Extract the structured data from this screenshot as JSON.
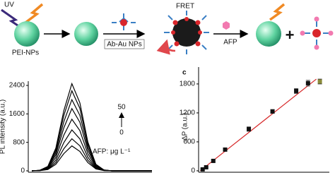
{
  "schematic": {
    "uv": "UV",
    "pei": "PEI-NPs",
    "ab": "Ab-Au NPs",
    "fret": "FRET",
    "afp": "AFP"
  },
  "chart_data": [
    {
      "type": "line",
      "y_label": "PL intensity (a.u.)",
      "annotations": [
        "50",
        "0",
        "AFP: μg L⁻¹"
      ],
      "categories": [
        null,
        null,
        null,
        null,
        null,
        null,
        null,
        null,
        null,
        null,
        null,
        null,
        null,
        null,
        null,
        null
      ],
      "series": [
        {
          "color": "#000000",
          "values": [
            0,
            15,
            123,
            637,
            1691,
            2450,
            1911,
            809,
            184,
            25,
            0,
            0,
            0,
            0,
            0,
            0
          ]
        },
        {
          "color": "#000000",
          "values": [
            0,
            14,
            113,
            585,
            1553,
            2250,
            1755,
            743,
            169,
            23,
            0,
            0,
            0,
            0,
            0,
            0
          ]
        },
        {
          "color": "#000000",
          "values": [
            0,
            12,
            100,
            520,
            1380,
            2000,
            1560,
            660,
            150,
            20,
            0,
            0,
            0,
            0,
            0,
            0
          ]
        },
        {
          "color": "#000000",
          "values": [
            0,
            11,
            88,
            455,
            1208,
            1750,
            1365,
            578,
            131,
            18,
            0,
            0,
            0,
            0,
            0,
            0
          ]
        },
        {
          "color": "#000000",
          "values": [
            0,
            9,
            73,
            377,
            1001,
            1450,
            1131,
            479,
            109,
            15,
            0,
            0,
            0,
            0,
            0,
            0
          ]
        },
        {
          "color": "#000000",
          "values": [
            0,
            7,
            58,
            299,
            794,
            1150,
            897,
            380,
            86,
            12,
            0,
            0,
            0,
            0,
            0,
            0
          ]
        },
        {
          "color": "#000000",
          "values": [
            0,
            5,
            45,
            234,
            621,
            900,
            702,
            297,
            68,
            9,
            0,
            0,
            0,
            0,
            0,
            0
          ]
        },
        {
          "color": "#000000",
          "values": [
            0,
            4,
            35,
            182,
            483,
            700,
            546,
            231,
            53,
            7,
            0,
            0,
            0,
            0,
            0,
            0
          ]
        }
      ],
      "ylim": [
        -40,
        2520
      ],
      "yticks": [
        0,
        800,
        1600,
        2400
      ]
    },
    {
      "type": "scatter",
      "panel_label": "c",
      "y_label": "ΔP (a.u.)",
      "series": [
        {
          "color": "#111111",
          "x": [
            0.5,
            2,
            5,
            10,
            20,
            30,
            40,
            45
          ],
          "values": [
            29,
            73,
            205,
            439,
            864,
            1230,
            1654,
            1815
          ],
          "errors": [
            15,
            15,
            20,
            25,
            45,
            40,
            50,
            60
          ]
        },
        {
          "color": "#8b8b3a",
          "x": [
            50
          ],
          "values": [
            1850
          ],
          "errors": [
            50
          ]
        }
      ],
      "fit": {
        "color": "#d62728",
        "x": [
          -0.5,
          48.5
        ],
        "values": [
          0,
          1900
        ]
      },
      "xlim": [
        -1.2,
        54
      ],
      "ylim": [
        -30,
        2150
      ],
      "yticks": [
        0,
        600,
        1200,
        1800
      ]
    }
  ]
}
